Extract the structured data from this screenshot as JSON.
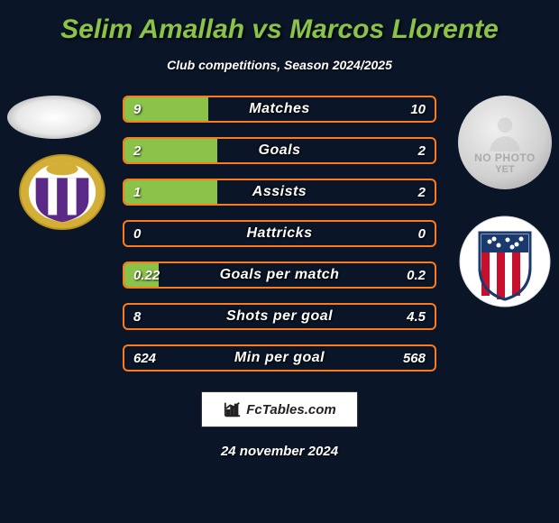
{
  "title": "Selim Amallah vs Marcos Llorente",
  "subtitle": "Club competitions, Season 2024/2025",
  "footer_date": "24 november 2024",
  "logo_text": "FcTables.com",
  "comparison": {
    "type": "bar-comparison",
    "bar_border_color": "#ff7a1a",
    "bar_fill_color": "#8bc34a",
    "background_color": "#0a1628",
    "text_color": "#ffffff",
    "title_color": "#8bc34a",
    "title_fontsize": 30,
    "subtitle_fontsize": 14,
    "label_fontsize": 16,
    "value_fontsize": 15,
    "rows": [
      {
        "label": "Matches",
        "left_val": "9",
        "right_val": "10",
        "left_pct": 27,
        "right_pct": 0
      },
      {
        "label": "Goals",
        "left_val": "2",
        "right_val": "2",
        "left_pct": 30,
        "right_pct": 0
      },
      {
        "label": "Assists",
        "left_val": "1",
        "right_val": "2",
        "left_pct": 30,
        "right_pct": 0
      },
      {
        "label": "Hattricks",
        "left_val": "0",
        "right_val": "0",
        "left_pct": 0,
        "right_pct": 0
      },
      {
        "label": "Goals per match",
        "left_val": "0.22",
        "right_val": "0.2",
        "left_pct": 11,
        "right_pct": 0
      },
      {
        "label": "Shots per goal",
        "left_val": "8",
        "right_val": "4.5",
        "left_pct": 0,
        "right_pct": 0
      },
      {
        "label": "Min per goal",
        "left_val": "624",
        "right_val": "568",
        "left_pct": 0,
        "right_pct": 0
      }
    ]
  },
  "players": {
    "left": {
      "avatar_shape": "ellipse",
      "club": "real-valladolid",
      "club_colors": {
        "outer": "#d4af37",
        "stripe1": "#5b2a86",
        "stripe2": "#ffffff"
      }
    },
    "right": {
      "avatar_shape": "placeholder",
      "placeholder_text_top": "NO PHOTO",
      "placeholder_text_bottom": "YET",
      "club": "atletico-madrid",
      "club_colors": {
        "outer": "#ffffff",
        "stripe1": "#c8102e",
        "stripe2": "#ffffff",
        "accent": "#1a3a6e"
      }
    }
  }
}
